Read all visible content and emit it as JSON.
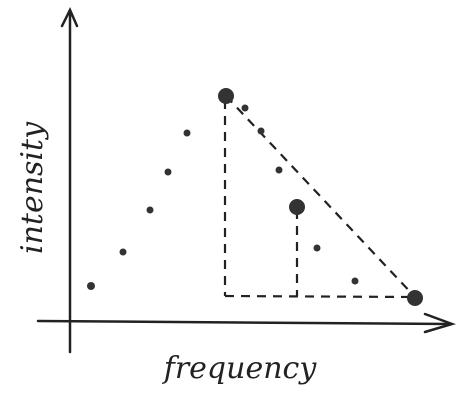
{
  "axes": {
    "x_label": "frequency",
    "y_label": "intensity"
  }
}
